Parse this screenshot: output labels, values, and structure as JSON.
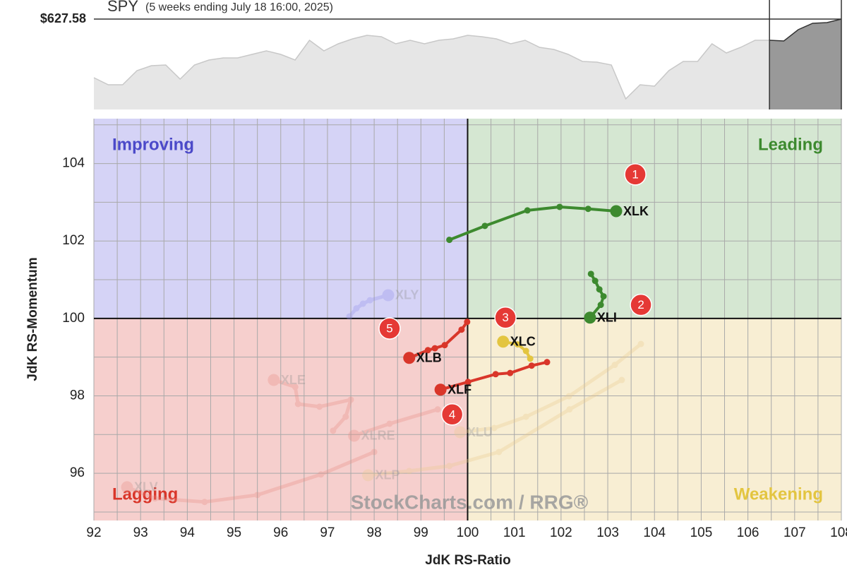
{
  "chart_data": [
    {
      "type": "area",
      "title": "SPY",
      "subtitle": "(5 weeks ending July 18 16:00, 2025)",
      "values": [
        605.17,
        602.47,
        602.47,
        607.87,
        609.76,
        610.03,
        604.63,
        610.03,
        611.92,
        612.73,
        612.73,
        614.08,
        615.43,
        614.08,
        611.92,
        619.48,
        615.43,
        618.13,
        620.02,
        621.37,
        620.83,
        618.13,
        619.48,
        618.13,
        619.48,
        620.02,
        621.37,
        620.83,
        620.02,
        618.13,
        619.48,
        616.78,
        615.97,
        614.08,
        611.38,
        611.11,
        610.03,
        597.07,
        602.47,
        601.93,
        607.87,
        611.38,
        611.38,
        618.13,
        614.62,
        616.78,
        619.48,
        619.48,
        619.21,
        623.53,
        625.96,
        626.23,
        627.58
      ],
      "last_value_label": "$627.58",
      "highlight_from": 47,
      "ylim": [
        593.02,
        634.87
      ],
      "color": "#e6e6e6",
      "highlight_color": "#999999"
    },
    {
      "type": "rrg",
      "x_label": "JdK RS-Ratio",
      "y_label": "JdK RS-Momentum",
      "watermark": "StockCharts.com / RRG®",
      "xlim": [
        92,
        108
      ],
      "ylim": [
        94.78,
        105.16
      ],
      "xticks": [
        92,
        93,
        94,
        95,
        96,
        97,
        98,
        99,
        100,
        101,
        102,
        103,
        104,
        105,
        106,
        107,
        108
      ],
      "yticks": [
        96,
        98,
        100,
        102,
        104
      ],
      "xminor": [
        92.5,
        93.5,
        94.5,
        95.5,
        96.5,
        97.5,
        98.5,
        99.5,
        100.5,
        101.5,
        102.5,
        103.5,
        104.5,
        105.5,
        106.5,
        107.5
      ],
      "yminor": [
        95,
        97,
        99,
        101,
        103,
        105
      ],
      "grid": true,
      "center": 100,
      "quadrants": [
        {
          "name": "Improving",
          "color": "#d5d3f6",
          "text_color": "#4b49c9",
          "corner": "top-left"
        },
        {
          "name": "Leading",
          "color": "#d5e7d2",
          "text_color": "#3d8a2f",
          "corner": "top-right"
        },
        {
          "name": "Lagging",
          "color": "#f6cfcd",
          "text_color": "#d9362a",
          "corner": "bottom-left"
        },
        {
          "name": "Weakening",
          "color": "#f8eed3",
          "text_color": "#e3c540",
          "corner": "bottom-right"
        }
      ],
      "series": [
        {
          "name": "XLV",
          "color": "#e88a80",
          "faded": true,
          "x": [
            98.0,
            96.86,
            95.5,
            94.37,
            93.31,
            92.71
          ],
          "y": [
            96.55,
            95.97,
            95.44,
            95.26,
            95.35,
            95.64
          ]
        },
        {
          "name": "XLP",
          "color": "#e9c98a",
          "faded": true,
          "x": [
            103.3,
            102.18,
            100.67,
            99.61,
            98.75,
            97.87
          ],
          "y": [
            98.41,
            97.65,
            96.55,
            96.19,
            96.06,
            95.95
          ]
        },
        {
          "name": "XLU",
          "color": "#e9c98a",
          "faded": true,
          "x": [
            103.71,
            103.15,
            102.17,
            101.25,
            100.57,
            99.84
          ],
          "y": [
            99.34,
            98.8,
            97.99,
            97.46,
            97.17,
            97.06
          ]
        },
        {
          "name": "XLRE",
          "color": "#e88a80",
          "faded": true,
          "x": [
            99.36,
            98.33,
            97.57
          ],
          "y": [
            97.65,
            97.28,
            96.97
          ]
        },
        {
          "name": "XLE",
          "color": "#e88a80",
          "faded": true,
          "x": [
            97.12,
            97.39,
            97.5,
            96.83,
            96.37,
            96.31,
            95.85
          ],
          "y": [
            97.1,
            97.46,
            97.9,
            97.72,
            97.79,
            98.23,
            98.41
          ]
        },
        {
          "name": "XLY",
          "color": "#8d8bea",
          "faded": true,
          "x": [
            97.47,
            97.62,
            97.76,
            97.91,
            98.3
          ],
          "y": [
            100.05,
            100.26,
            100.38,
            100.47,
            100.6
          ]
        },
        {
          "name": "XLK",
          "color": "#3d8a2f",
          "faded": false,
          "x": [
            99.61,
            100.37,
            101.28,
            101.97,
            102.58,
            103.18
          ],
          "y": [
            102.03,
            102.39,
            102.79,
            102.88,
            102.83,
            102.77
          ]
        },
        {
          "name": "XLI",
          "color": "#3d8a2f",
          "faded": false,
          "x": [
            102.64,
            102.73,
            102.82,
            102.91,
            102.85,
            102.62
          ],
          "y": [
            101.15,
            100.97,
            100.75,
            100.57,
            100.35,
            100.02
          ]
        },
        {
          "name": "XLC",
          "color": "#e3c540",
          "faded": false,
          "x": [
            101.34,
            101.25,
            101.07,
            100.76
          ],
          "y": [
            98.96,
            99.16,
            99.33,
            99.4
          ]
        },
        {
          "name": "XLB",
          "color": "#d9362a",
          "faded": false,
          "x": [
            99.99,
            99.87,
            99.51,
            99.3,
            99.15,
            98.75
          ],
          "y": [
            99.91,
            99.71,
            99.31,
            99.23,
            99.18,
            98.98
          ]
        },
        {
          "name": "XLF",
          "color": "#d9362a",
          "faded": false,
          "x": [
            101.7,
            101.37,
            100.91,
            100.6,
            100.01,
            99.42
          ],
          "y": [
            98.87,
            98.78,
            98.59,
            98.56,
            98.36,
            98.16
          ]
        }
      ],
      "annotations": [
        {
          "text": "1",
          "x": 103.59,
          "y": 103.72
        },
        {
          "text": "2",
          "x": 103.71,
          "y": 100.35
        },
        {
          "text": "3",
          "x": 100.81,
          "y": 100.02
        },
        {
          "text": "4",
          "x": 99.67,
          "y": 97.52
        },
        {
          "text": "5",
          "x": 98.33,
          "y": 99.74
        }
      ],
      "annotation_color": "#e53935"
    }
  ]
}
